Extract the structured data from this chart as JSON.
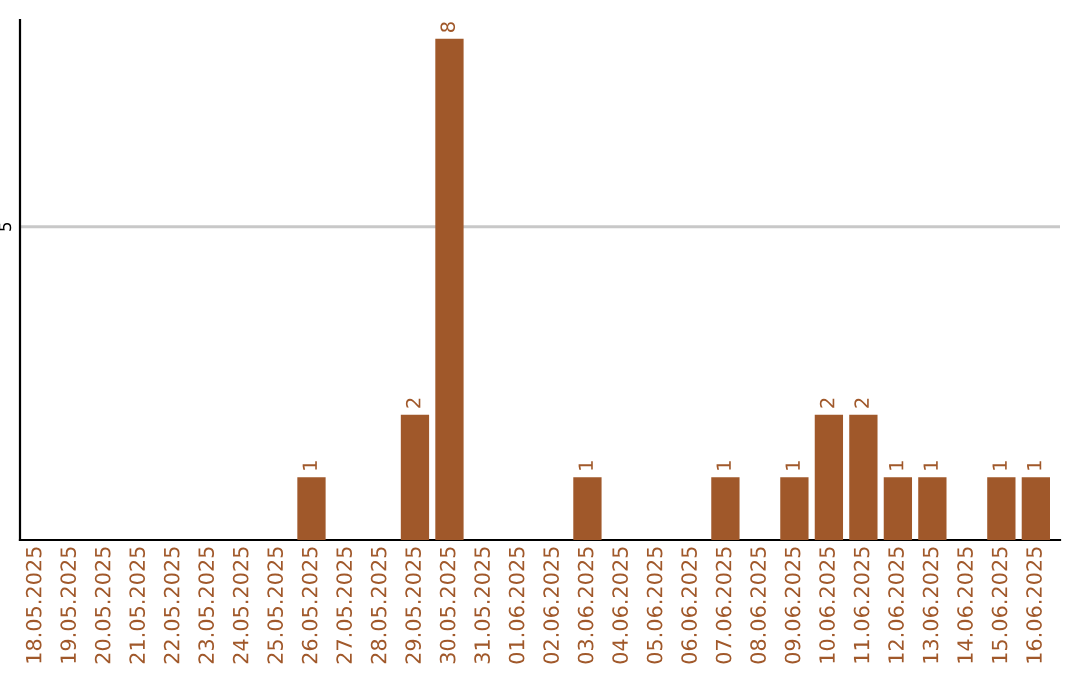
{
  "chart_data": {
    "type": "bar",
    "categories": [
      "18.05.2025",
      "19.05.2025",
      "20.05.2025",
      "21.05.2025",
      "22.05.2025",
      "23.05.2025",
      "24.05.2025",
      "25.05.2025",
      "26.05.2025",
      "27.05.2025",
      "28.05.2025",
      "29.05.2025",
      "30.05.2025",
      "31.05.2025",
      "01.06.2025",
      "02.06.2025",
      "03.06.2025",
      "04.06.2025",
      "05.06.2025",
      "06.06.2025",
      "07.06.2025",
      "08.06.2025",
      "09.06.2025",
      "10.06.2025",
      "11.06.2025",
      "12.06.2025",
      "13.06.2025",
      "14.06.2025",
      "15.06.2025",
      "16.06.2025"
    ],
    "values": [
      0,
      0,
      0,
      0,
      0,
      0,
      0,
      0,
      1,
      0,
      0,
      2,
      8,
      0,
      0,
      0,
      1,
      0,
      0,
      0,
      1,
      0,
      1,
      2,
      2,
      1,
      1,
      0,
      1,
      1
    ],
    "value_labels": [
      null,
      null,
      null,
      null,
      null,
      null,
      null,
      null,
      "1",
      null,
      null,
      "2",
      "8",
      null,
      null,
      null,
      "1",
      null,
      null,
      null,
      "1",
      null,
      "1",
      "2",
      "2",
      "1",
      "1",
      null,
      "1",
      "1"
    ],
    "color": "#a0582a",
    "ylim": [
      0,
      8.3
    ],
    "yticks": [
      5
    ],
    "grid": "y",
    "legend": false
  }
}
